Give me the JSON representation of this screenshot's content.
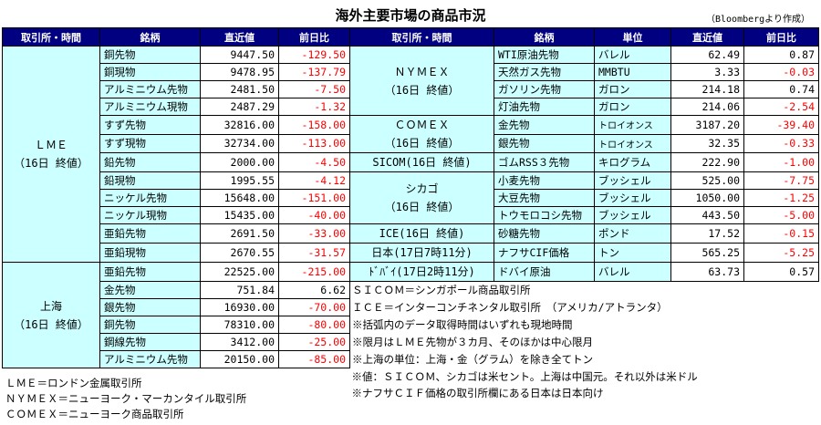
{
  "title": "海外主要市場の商品市況",
  "source": "（Bloombergより作成）",
  "headers": {
    "left": [
      "取引所・時間",
      "銘柄",
      "直近値",
      "前日比"
    ],
    "right": [
      "取引所・時間",
      "銘柄",
      "単位",
      "直近値",
      "前日比"
    ]
  },
  "lme": {
    "group": [
      "ＬＭＥ",
      "（16日 終値）"
    ],
    "rows": [
      [
        "銅先物",
        "9447.50",
        "-129.50"
      ],
      [
        "銅現物",
        "9478.95",
        "-137.79"
      ],
      [
        "アルミニウム先物",
        "2481.50",
        "-7.50"
      ],
      [
        "アルミニウム現物",
        "2487.29",
        "-1.32"
      ],
      [
        "すず先物",
        "32816.00",
        "-158.00"
      ],
      [
        "すず現物",
        "32734.00",
        "-113.00"
      ],
      [
        "鉛先物",
        "2000.00",
        "-4.50"
      ],
      [
        "鉛現物",
        "1995.55",
        "-4.12"
      ],
      [
        "ニッケル先物",
        "15648.00",
        "-151.00"
      ],
      [
        "ニッケル現物",
        "15435.00",
        "-40.00"
      ],
      [
        "亜鉛先物",
        "2691.50",
        "-33.00"
      ],
      [
        "亜鉛現物",
        "2670.55",
        "-31.57"
      ]
    ]
  },
  "shanghai": {
    "group": [
      "上海",
      "（16日 終値）"
    ],
    "rows": [
      [
        "亜鉛先物",
        "22525.00",
        "-215.00"
      ],
      [
        "金先物",
        "751.84",
        "6.62"
      ],
      [
        "銀先物",
        "16930.00",
        "-70.00"
      ],
      [
        "銅先物",
        "78310.00",
        "-80.00"
      ],
      [
        "鋼線先物",
        "3412.00",
        "-25.00"
      ],
      [
        "アルミニウム先物",
        "20150.00",
        "-85.00"
      ]
    ]
  },
  "right": {
    "nymex_group": [
      "ＮＹＭＥＸ",
      "（16日 終値）"
    ],
    "comex_group": [
      "ＣＯＭＥＸ",
      "（16日 終値）"
    ],
    "sicom_group": "SICOM(16日 終値)",
    "chicago_group": [
      "シカゴ",
      "（16日 終値）"
    ],
    "ice_group": "ICE(16日 終値)",
    "japan_group": "日本(17日7時11分)",
    "dubai_group": "ﾄﾞﾊﾞｲ(17日2時11分)",
    "rows": [
      [
        "WTI原油先物",
        "バレル",
        "62.49",
        "0.87"
      ],
      [
        "天然ガス先物",
        "MMBTU",
        "3.33",
        "-0.03"
      ],
      [
        "ガソリン先物",
        "ガロン",
        "214.18",
        "0.74"
      ],
      [
        "灯油先物",
        "ガロン",
        "214.06",
        "-2.54"
      ],
      [
        "金先物",
        "トロイオンス",
        "3187.20",
        "-39.40"
      ],
      [
        "銀先物",
        "トロイオンス",
        "32.35",
        "-0.33"
      ],
      [
        "ゴムRSS３先物",
        "キログラム",
        "222.90",
        "-1.00"
      ],
      [
        "小麦先物",
        "ブッシェル",
        "525.00",
        "-7.75"
      ],
      [
        "大豆先物",
        "ブッシェル",
        "1050.00",
        "-1.25"
      ],
      [
        "トウモロコシ先物",
        "ブッシェル",
        "443.50",
        "-5.00"
      ],
      [
        "砂糖先物",
        "ポンド",
        "17.52",
        "-0.15"
      ],
      [
        "ナフサCIF価格",
        "トン",
        "565.25",
        "-5.25"
      ],
      [
        "ドバイ原油",
        "バレル",
        "63.73",
        "0.57"
      ]
    ]
  },
  "notes": [
    "ＳＩＣＯＭ＝シンガポール商品取引所",
    "ＩＣＥ＝インターコンチネンタル取引所　（アメリカ/アトランタ）",
    "※括弧内のデータ取得時間はいずれも現地時間",
    "※限月はＬＭＥ先物が３カ月、そのほかは中心限月",
    "※上海の単位：上海・金（グラム）を除き全てトン",
    "※値：ＳＩＣＯＭ、シカゴは米セント。上海は中国元。それ以外は米ドル",
    "※ナフサＣＩＦ価格の取引所欄にある日本は日本向け"
  ],
  "legend": [
    "ＬＭＥ＝ロンドン金属取引所",
    "ＮＹＭＥＸ＝ニューヨーク・マーカンタイル取引所",
    "ＣＯＭＥＸ＝ニューヨーク商品取引所"
  ]
}
